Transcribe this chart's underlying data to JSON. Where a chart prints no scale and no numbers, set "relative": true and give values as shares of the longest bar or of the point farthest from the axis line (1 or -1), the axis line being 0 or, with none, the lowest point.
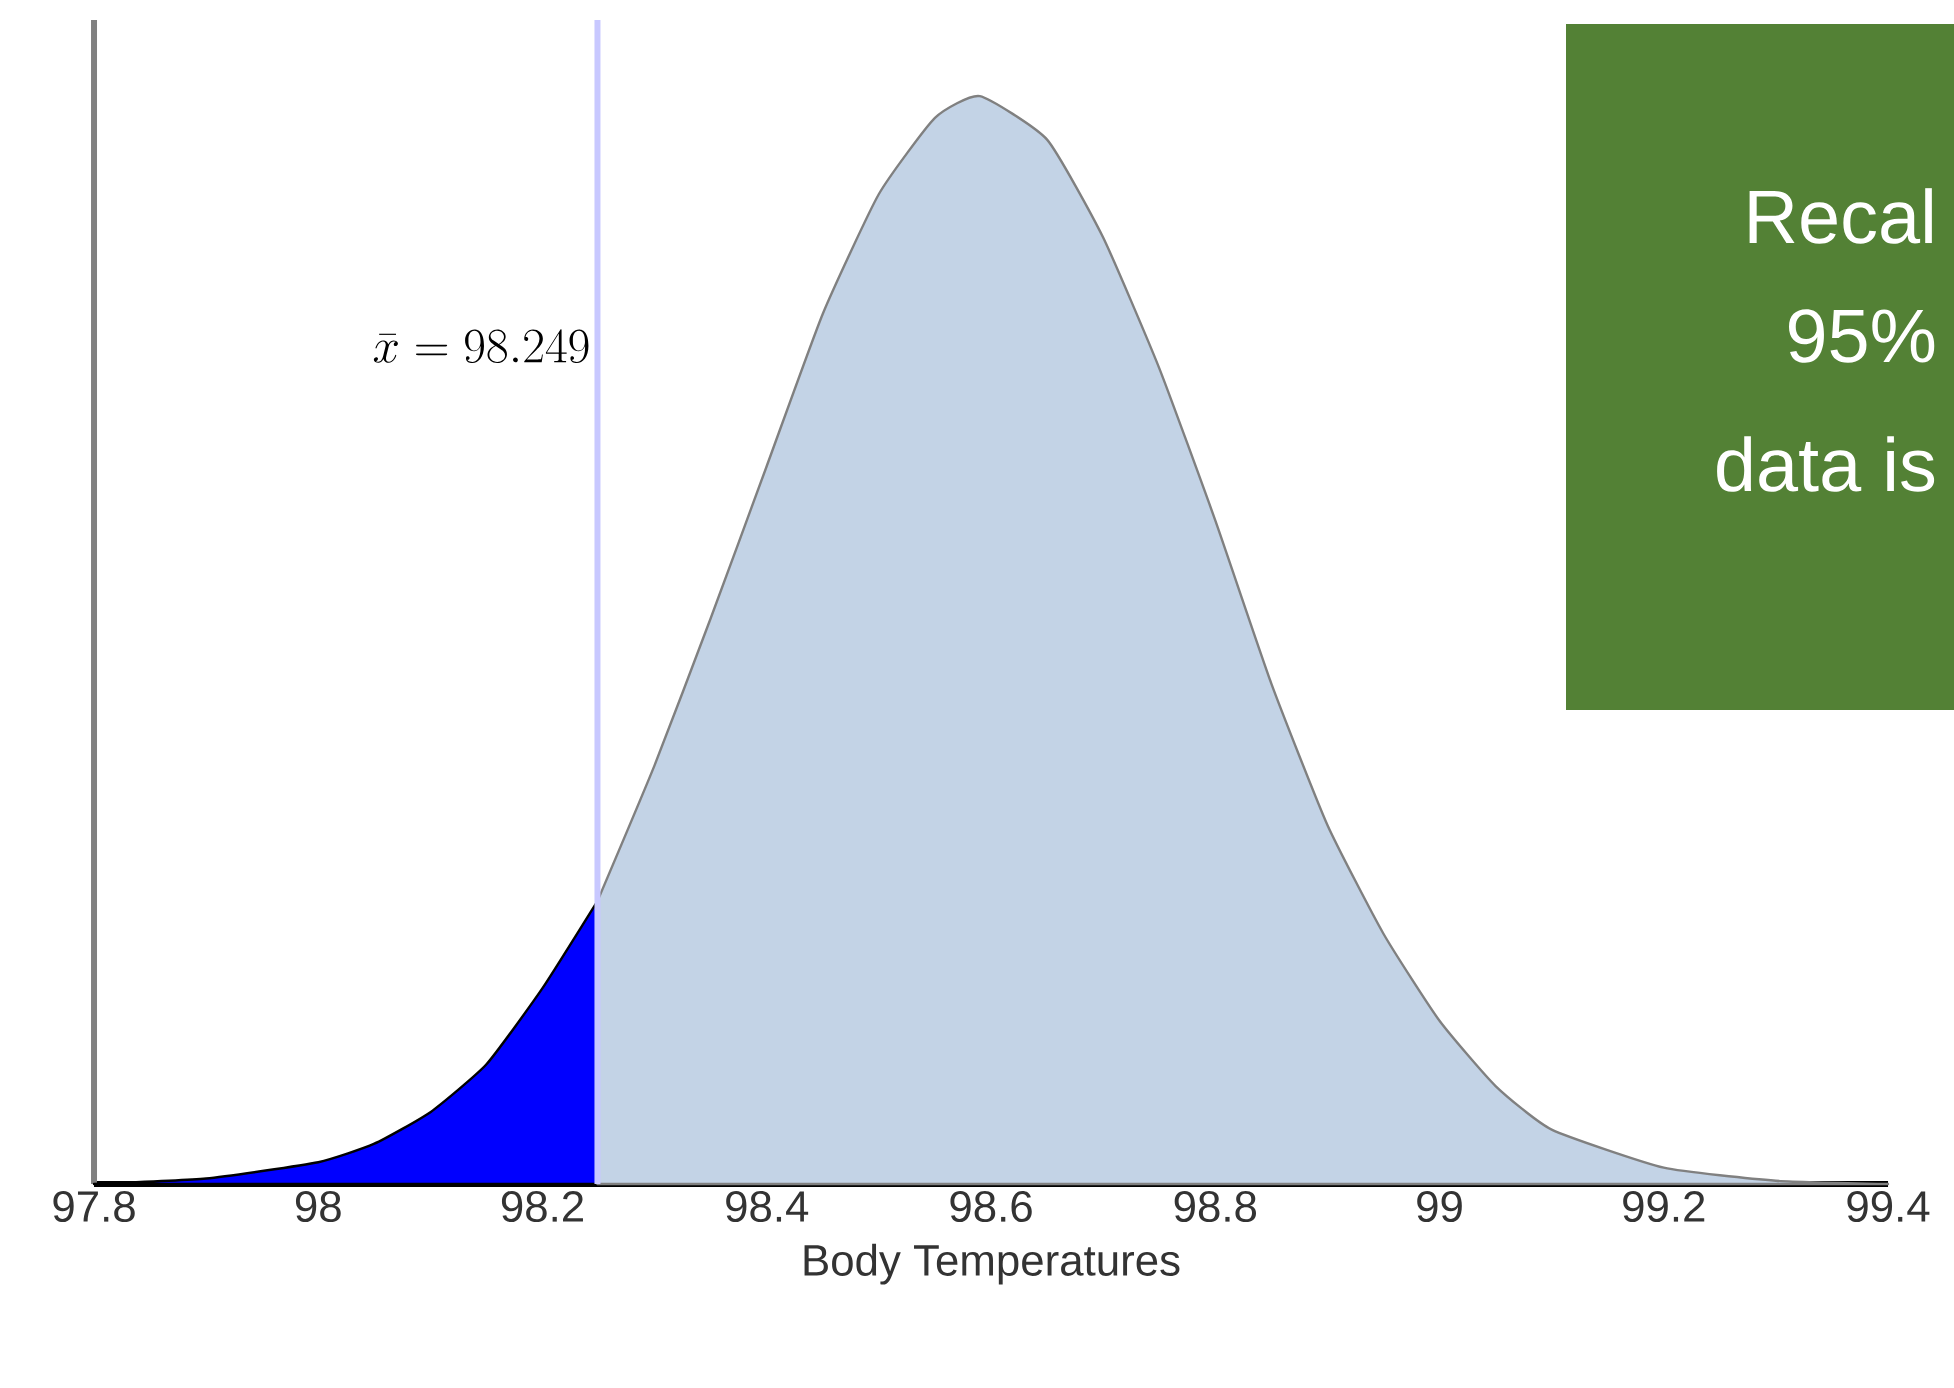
{
  "chart_data": {
    "type": "area",
    "relative": true,
    "xlabel": "Body Temperatures",
    "xlim": [
      97.8,
      99.4
    ],
    "xticks": [
      97.8,
      98,
      98.2,
      98.4,
      98.6,
      98.8,
      99,
      99.2,
      99.4
    ],
    "series": [
      {
        "color": "#0000ff",
        "x": [
          97.8,
          97.9,
          98.0,
          98.05,
          98.1,
          98.15,
          98.2,
          98.249
        ],
        "values": [
          0,
          0.005,
          0.02,
          0.037,
          0.066,
          0.11,
          0.18,
          0.26
        ]
      },
      {
        "color": "#c3d3e6",
        "x": [
          98.249,
          98.3,
          98.35,
          98.4,
          98.45,
          98.5,
          98.55,
          98.59,
          98.65,
          98.7,
          98.75,
          98.8,
          98.85,
          98.9,
          98.95,
          99.0,
          99.05,
          99.1,
          99.2,
          99.3,
          99.4
        ],
        "values": [
          0.26,
          0.385,
          0.52,
          0.66,
          0.8,
          0.91,
          0.98,
          1,
          0.96,
          0.87,
          0.75,
          0.61,
          0.46,
          0.33,
          0.23,
          0.15,
          0.09,
          0.05,
          0.015,
          0.003,
          0
        ]
      }
    ],
    "ref_lines": [
      {
        "axis": "x",
        "value": 98.249,
        "label": "\\bar{x} = 98.249",
        "color": "#c8c8ff"
      }
    ],
    "annotations": [
      "Recal",
      "95%",
      "data is"
    ],
    "grid": false
  }
}
